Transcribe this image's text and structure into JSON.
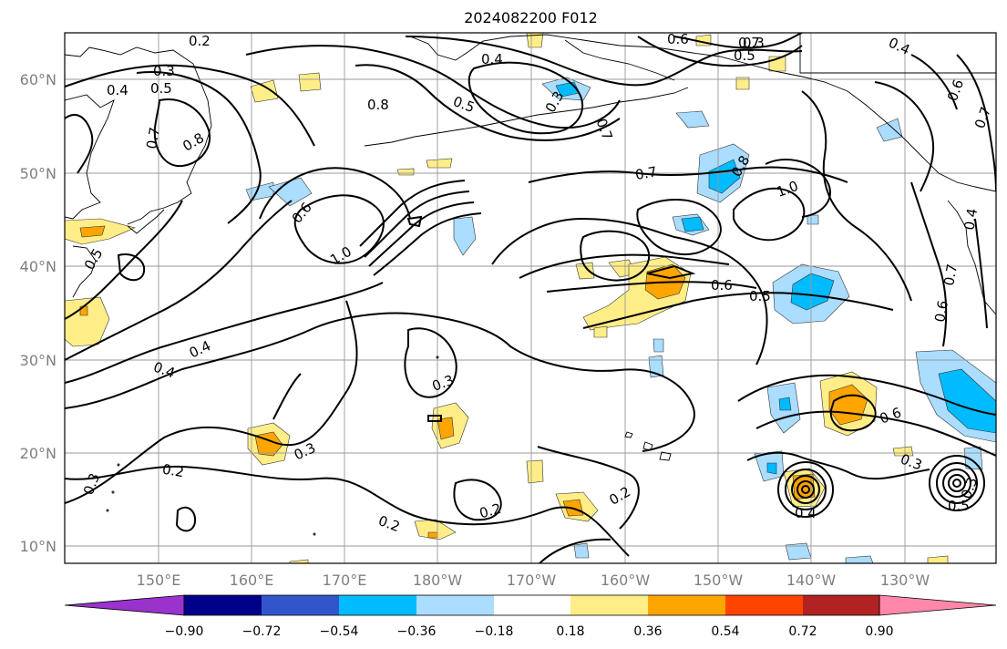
{
  "title": "2024082200 F012",
  "lat_labels": [
    "60°N",
    "50°N",
    "40°N",
    "30°N",
    "20°N",
    "10°N"
  ],
  "lon_labels": [
    "150°E",
    "160°E",
    "170°E",
    "180°W",
    "170°W",
    "160°W",
    "150°W",
    "140°W",
    "130°W"
  ],
  "colorbar": {
    "tick_labels": [
      "−0.90",
      "−0.72",
      "−0.54",
      "−0.36",
      "−0.18",
      "0.18",
      "0.36",
      "0.54",
      "0.72",
      "0.90"
    ],
    "colors": [
      "#9933cc",
      "#000088",
      "#3355cc",
      "#00bbff",
      "#aaddff",
      "#ffffff",
      "#ffee88",
      "#ffa500",
      "#ff4400",
      "#b22222",
      "#ff88aa"
    ]
  },
  "contour_labels": [
    "0.2",
    "0.3",
    "0.4",
    "0.5",
    "0.6",
    "0.7",
    "0.8",
    "1.0",
    "0.3",
    "0.4",
    "0.5",
    "0.8",
    "0.5",
    "0.3",
    "0.4",
    "0.5",
    "0.7",
    "0.8",
    "1.0",
    "0.7",
    "0.6",
    "0.5",
    "0.6",
    "0.7",
    "0.4",
    "0.7",
    "0.6",
    "0.4",
    "0.3",
    "0.2",
    "0.3",
    "0.2",
    "0.2",
    "0.2",
    "0.3",
    "0.6",
    "0.3",
    "0.4",
    "0.5",
    "0.3",
    "0.4",
    "0.6",
    "0.7"
  ]
}
